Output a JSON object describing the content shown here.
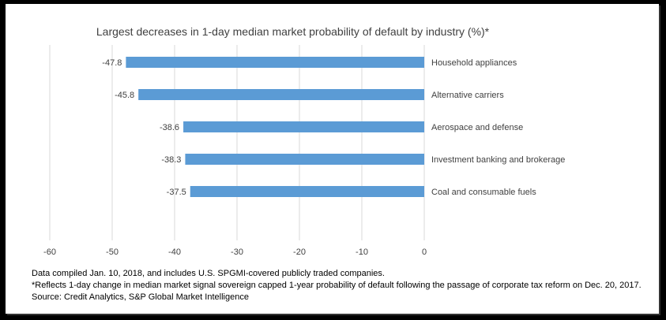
{
  "chart_data": {
    "type": "bar",
    "orientation": "horizontal",
    "title": "Largest decreases in 1-day median market probability of default by industry (%)*",
    "categories": [
      "Household appliances",
      "Alternative carriers",
      "Aerospace and defense",
      "Investment banking and brokerage",
      "Coal and consumable fuels"
    ],
    "values": [
      -47.8,
      -45.8,
      -38.6,
      -38.3,
      -37.5
    ],
    "value_labels": [
      "-47.8",
      "-45.8",
      "-38.6",
      "-38.3",
      "-37.5"
    ],
    "xlim": [
      -60,
      0
    ],
    "x_ticks": [
      -60,
      -50,
      -40,
      -30,
      -20,
      -10,
      0
    ],
    "x_tick_labels": [
      "-60",
      "-50",
      "-40",
      "-30",
      "-20",
      "-10",
      "0"
    ],
    "grid": true,
    "legend": "none",
    "bar_color": "#5b9bd5"
  },
  "notes": [
    "Data compiled Jan. 10, 2018, and includes U.S. SPGMI-covered publicly traded companies.",
    "*Reflects 1-day change in median market signal sovereign capped 1-year probability of default following the passage of corporate tax reform on Dec. 20, 2017.",
    "Source: Credit Analytics, S&P Global Market Intelligence"
  ]
}
